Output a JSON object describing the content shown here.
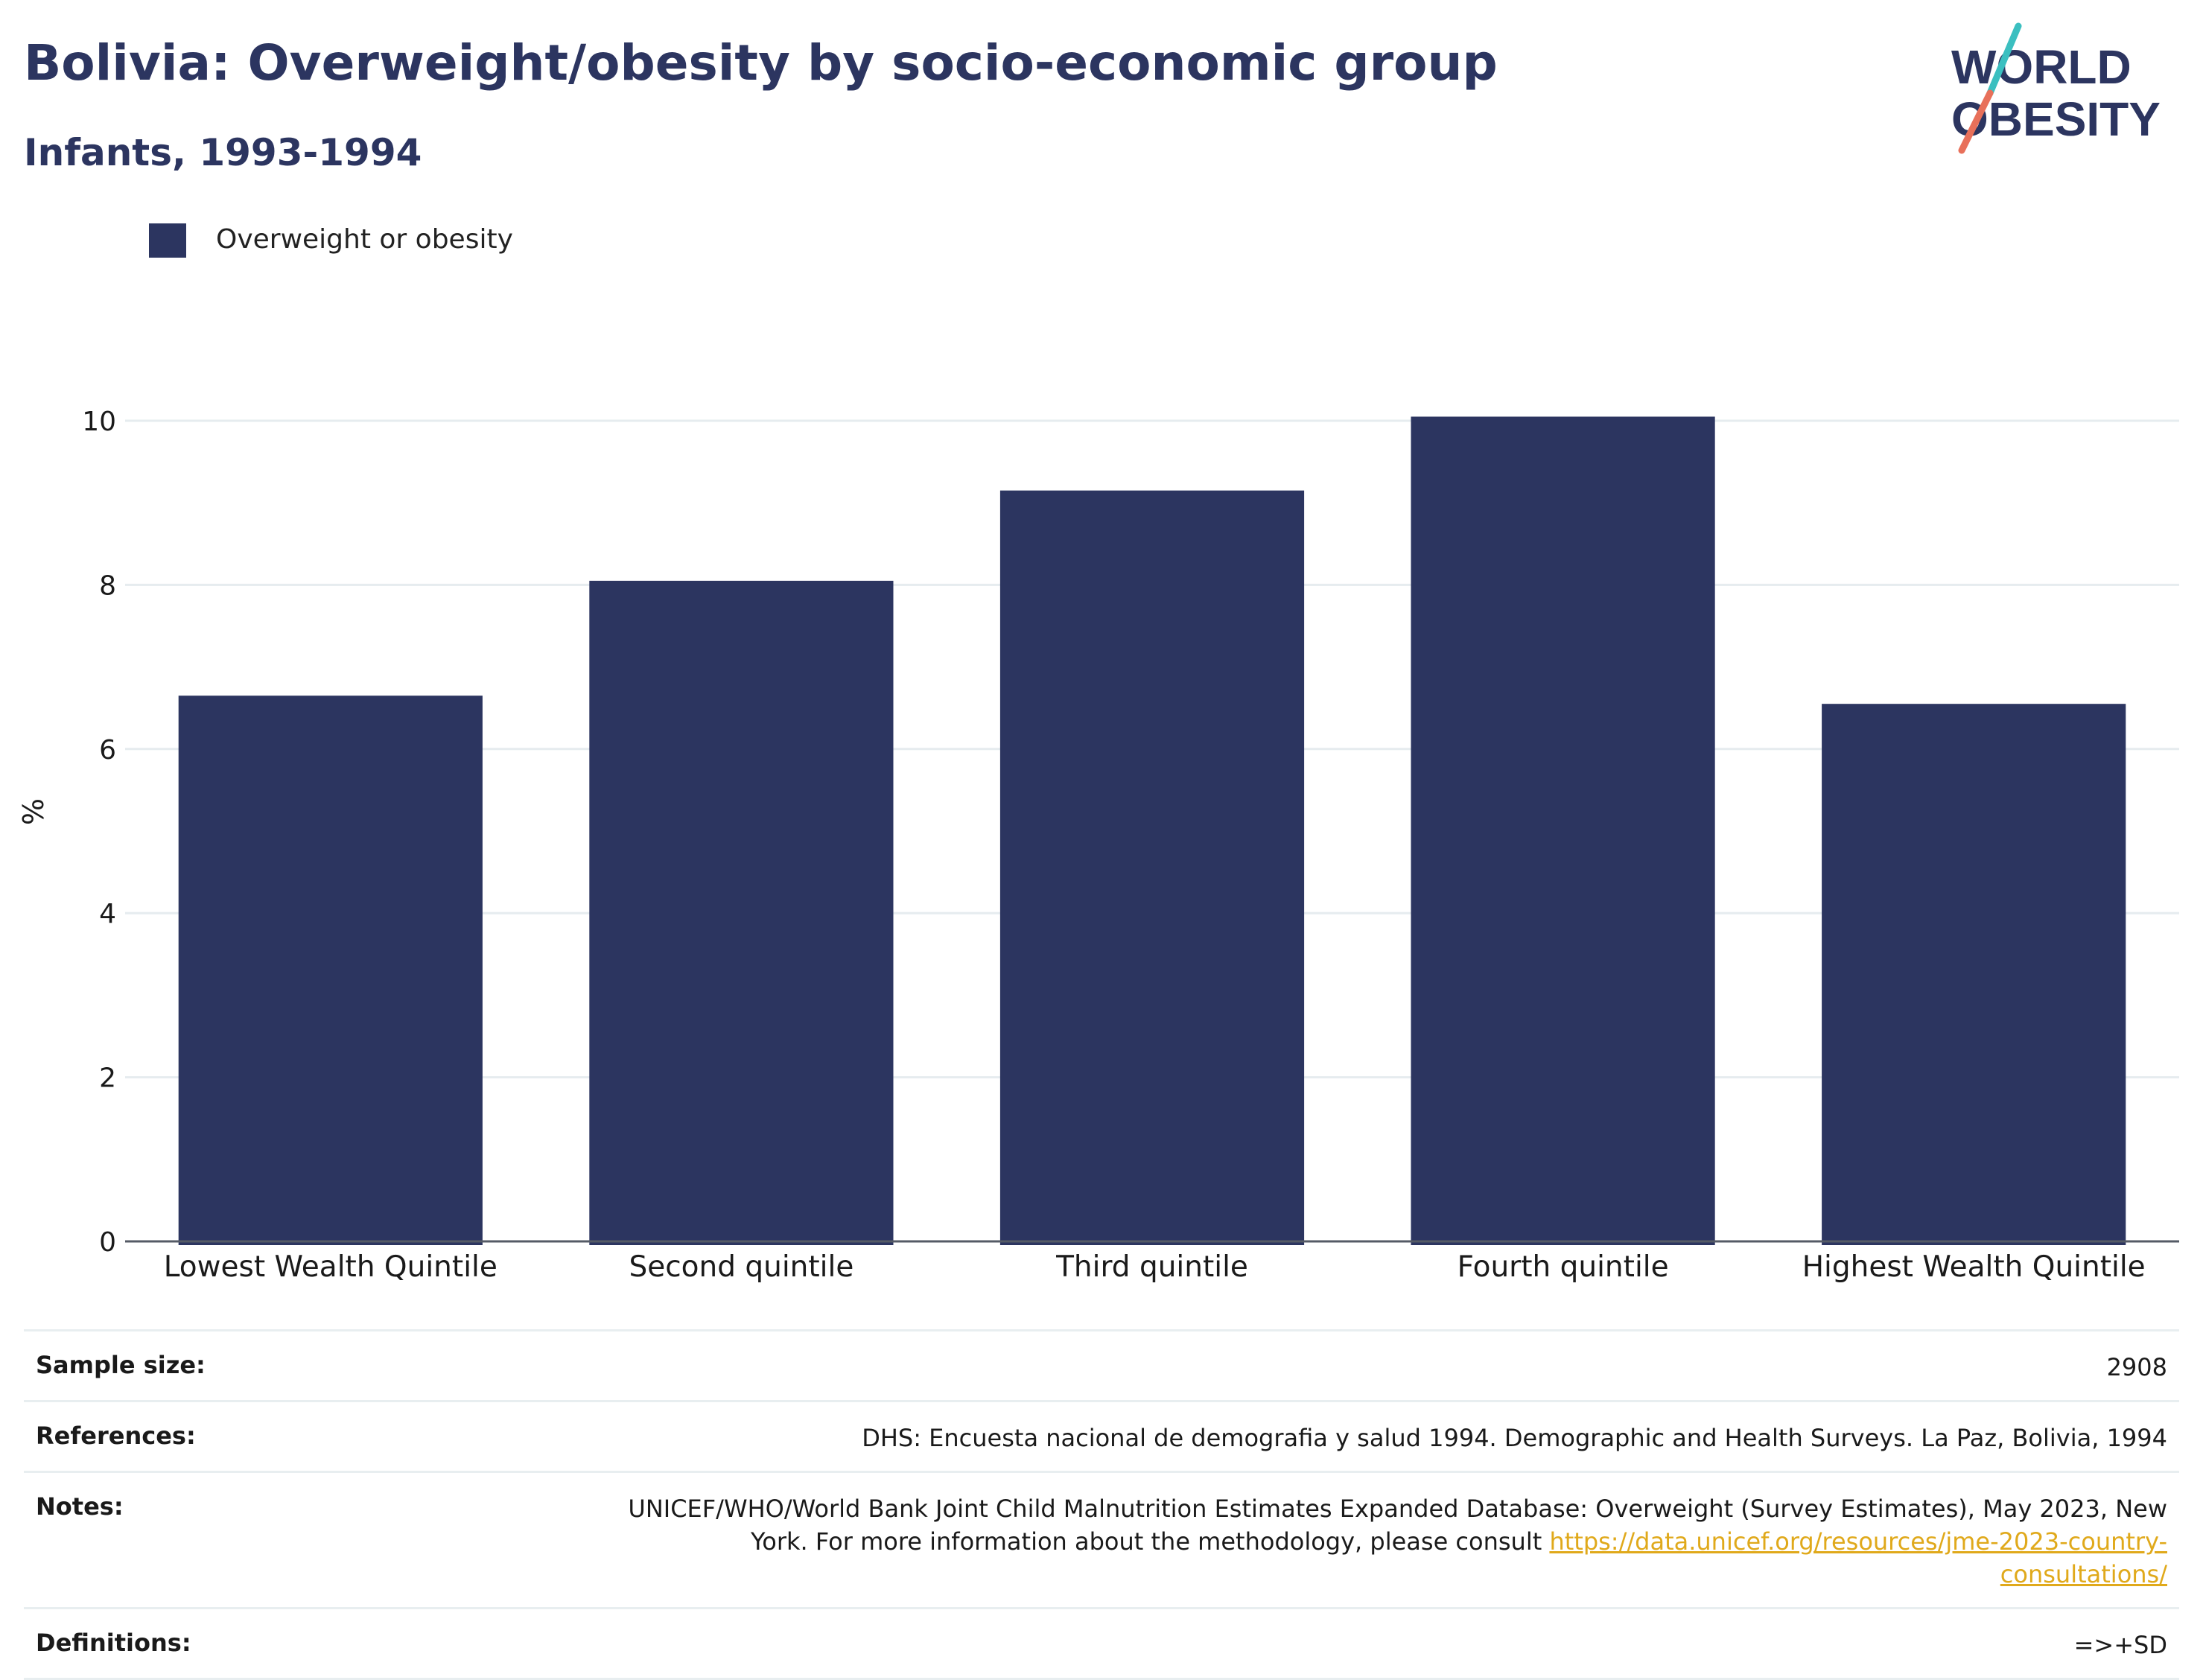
{
  "header": {
    "title": "Bolivia: Overweight/obesity by socio-economic group",
    "subtitle": "Infants, 1993-1994"
  },
  "logo": {
    "line1": "WORLD",
    "line2": "OBESITY",
    "colors": {
      "text": "#2c3560",
      "slash_top": "#3bbfc0",
      "slash_bottom": "#e8705a"
    }
  },
  "legend": {
    "label": "Overweight or obesity",
    "color": "#2c3560"
  },
  "chart_data": {
    "type": "bar",
    "categories": [
      "Lowest Wealth Quintile",
      "Second quintile",
      "Third quintile",
      "Fourth quintile",
      "Highest Wealth Quintile"
    ],
    "series": [
      {
        "name": "Overweight or obesity",
        "values": [
          6.65,
          8.05,
          9.15,
          10.05,
          6.55
        ],
        "color": "#2c3560"
      }
    ],
    "ylabel": "%",
    "ylim": [
      0,
      10.5
    ],
    "yticks": [
      0,
      2,
      4,
      6,
      8,
      10
    ],
    "grid": true,
    "legend_position": "top-left"
  },
  "info": {
    "sample_size": {
      "key": "Sample size:",
      "value": "2908"
    },
    "references": {
      "key": "References:",
      "value": "DHS: Encuesta nacional de demografia y salud 1994. Demographic and Health Surveys. La Paz, Bolivia, 1994"
    },
    "notes": {
      "key": "Notes:",
      "value": "UNICEF/WHO/World Bank Joint Child Malnutrition Estimates Expanded Database: Overweight (Survey Estimates), May 2023, New York. For more information about the methodology, please consult ",
      "link": "https://data.unicef.org/resources/jme-2023-country-consultations/"
    },
    "definitions": {
      "key": "Definitions:",
      "value": "=>+SD"
    }
  }
}
